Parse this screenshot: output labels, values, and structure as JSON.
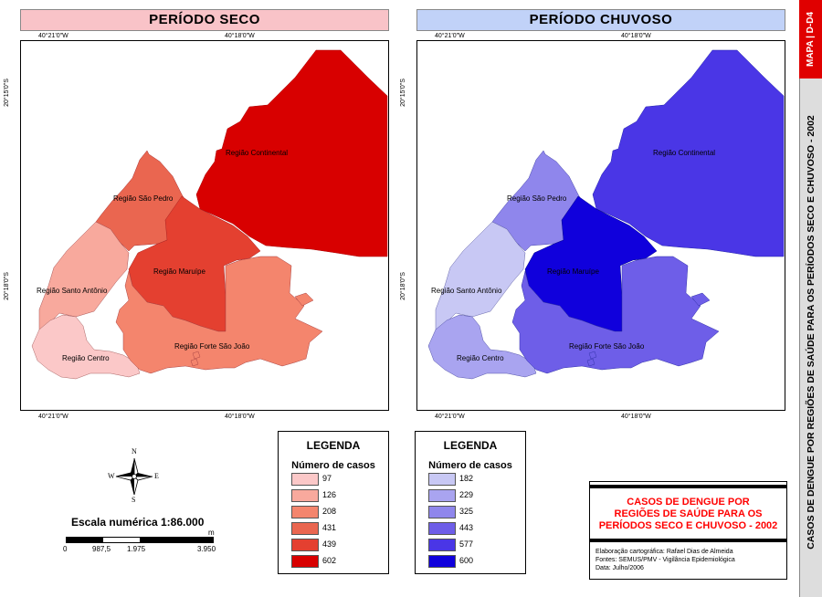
{
  "panels": {
    "dry_title": "PERÍODO SECO",
    "wet_title": "PERÍODO CHUVOSO"
  },
  "coords": {
    "lon_left": "40°21'0\"W",
    "lon_right": "40°18'0\"W",
    "lat_top": "20°15'0\"S",
    "lat_bottom": "20°18'0\"S"
  },
  "regions": {
    "continental": "Região Continental",
    "sao_pedro": "Região São Pedro",
    "maruipe": "Região Maruípe",
    "santo_antonio": "Região Santo Antônio",
    "centro": "Região Centro",
    "forte_sao_joao": "Região Forte São João"
  },
  "legend_dry": {
    "title": "LEGENDA",
    "subtitle": "Número de casos",
    "items": [
      {
        "value": "97",
        "color": "#fbc8c8"
      },
      {
        "value": "126",
        "color": "#f8a99d"
      },
      {
        "value": "208",
        "color": "#f4856d"
      },
      {
        "value": "431",
        "color": "#ea6650"
      },
      {
        "value": "439",
        "color": "#e44030"
      },
      {
        "value": "602",
        "color": "#d80000"
      }
    ]
  },
  "legend_wet": {
    "title": "LEGENDA",
    "subtitle": "Número de casos",
    "items": [
      {
        "value": "182",
        "color": "#c8c8f4"
      },
      {
        "value": "229",
        "color": "#a9a4f0"
      },
      {
        "value": "325",
        "color": "#8f86ec"
      },
      {
        "value": "443",
        "color": "#6e5ee8"
      },
      {
        "value": "577",
        "color": "#4a36e6"
      },
      {
        "value": "600",
        "color": "#1000dc"
      }
    ]
  },
  "compass": {
    "n": "N",
    "s": "S",
    "e": "E",
    "w": "W"
  },
  "scale": {
    "label": "Escala numérica",
    "ratio": "1:86.000",
    "unit": "m",
    "ticks": [
      "0",
      "987,5",
      "1.975",
      "3.950"
    ]
  },
  "title_box": {
    "line1": "CASOS DE DENGUE POR",
    "line2": "REGIÕES DE SAÚDE PARA OS",
    "line3": "PERÍODOS SECO E CHUVOSO - 2002",
    "credit1": "Elaboração cartográfica: Rafael Dias de Almeida",
    "credit2": "Fontes: SEMUS/PMV - Vigilância Epidemiológica",
    "credit3": "Data: Julho/2006"
  },
  "sidebar": {
    "map_id": "MAPA | D-D4",
    "long_title": "CASOS DE DENGUE POR REGIÕES DE SAÚDE PARA OS PERÍODOS SECO E CHUVOSO - 2002"
  }
}
